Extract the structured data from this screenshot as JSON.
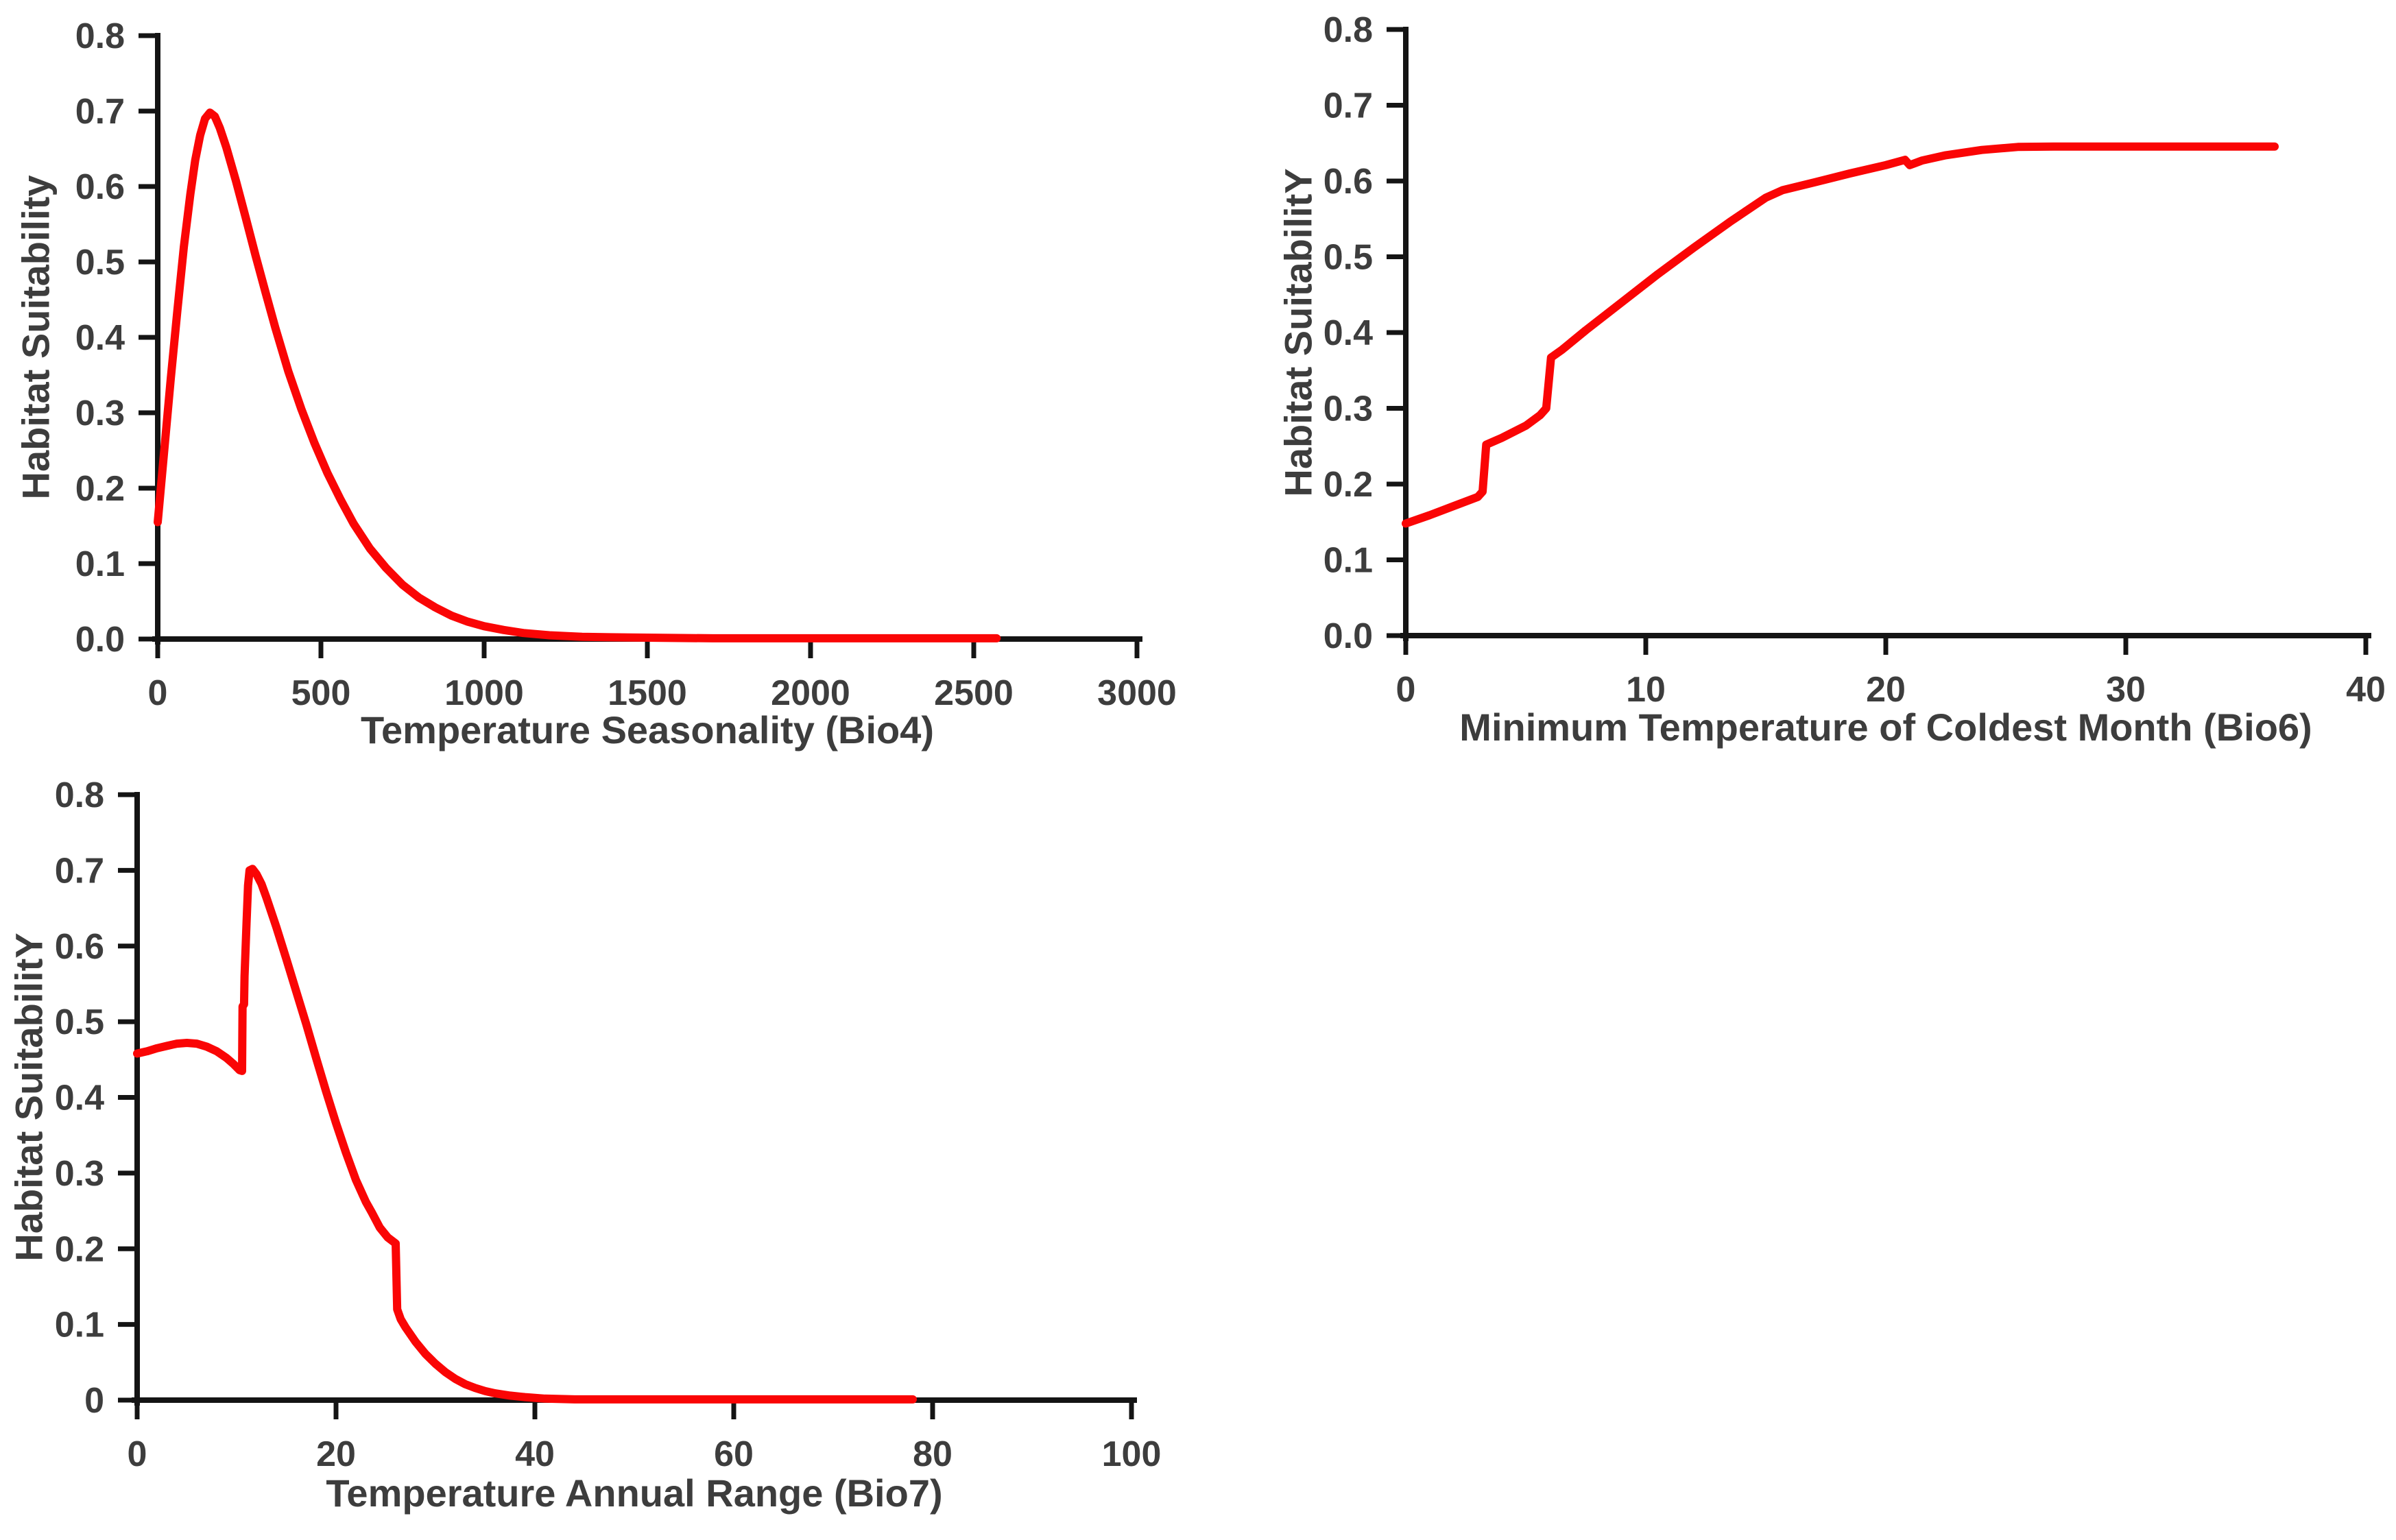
{
  "page": {
    "background": "#ffffff",
    "axis_color": "#141414",
    "tick_label_color": "#3d3d3d",
    "curve_color": "#fa0505"
  },
  "chart_data": [
    {
      "id": "bio4",
      "type": "line",
      "xlabel": "Temperature Seasonality (Bio4)",
      "ylabel": "Habitat Suitability",
      "xlim": [
        0,
        3000
      ],
      "ylim": [
        0,
        0.8
      ],
      "grid": false,
      "legend": false,
      "line_color": "#fa0505",
      "x_ticks": [
        {
          "v": 0,
          "label": "0"
        },
        {
          "v": 500,
          "label": "500"
        },
        {
          "v": 1000,
          "label": "1000"
        },
        {
          "v": 1500,
          "label": "1500"
        },
        {
          "v": 2000,
          "label": "2000"
        },
        {
          "v": 2500,
          "label": "2500"
        },
        {
          "v": 3000,
          "label": "3000"
        }
      ],
      "y_ticks": [
        {
          "v": 0.0,
          "label": "0.0"
        },
        {
          "v": 0.1,
          "label": "0.1"
        },
        {
          "v": 0.2,
          "label": "0.2"
        },
        {
          "v": 0.3,
          "label": "0.3"
        },
        {
          "v": 0.4,
          "label": "0.4"
        },
        {
          "v": 0.5,
          "label": "0.5"
        },
        {
          "v": 0.6,
          "label": "0.6"
        },
        {
          "v": 0.7,
          "label": "0.7"
        },
        {
          "v": 0.8,
          "label": "0.8"
        }
      ],
      "points": [
        [
          0,
          0.155
        ],
        [
          20,
          0.25
        ],
        [
          40,
          0.345
        ],
        [
          60,
          0.435
        ],
        [
          80,
          0.52
        ],
        [
          100,
          0.59
        ],
        [
          115,
          0.635
        ],
        [
          130,
          0.668
        ],
        [
          145,
          0.69
        ],
        [
          160,
          0.698
        ],
        [
          175,
          0.693
        ],
        [
          190,
          0.678
        ],
        [
          210,
          0.652
        ],
        [
          240,
          0.607
        ],
        [
          270,
          0.558
        ],
        [
          300,
          0.508
        ],
        [
          330,
          0.46
        ],
        [
          360,
          0.413
        ],
        [
          400,
          0.355
        ],
        [
          440,
          0.305
        ],
        [
          480,
          0.26
        ],
        [
          520,
          0.22
        ],
        [
          560,
          0.185
        ],
        [
          600,
          0.153
        ],
        [
          650,
          0.12
        ],
        [
          700,
          0.094
        ],
        [
          750,
          0.072
        ],
        [
          800,
          0.055
        ],
        [
          850,
          0.042
        ],
        [
          900,
          0.031
        ],
        [
          950,
          0.023
        ],
        [
          1000,
          0.017
        ],
        [
          1060,
          0.012
        ],
        [
          1120,
          0.008
        ],
        [
          1200,
          0.005
        ],
        [
          1300,
          0.003
        ],
        [
          1450,
          0.002
        ],
        [
          1700,
          0.001
        ],
        [
          2000,
          0.001
        ],
        [
          2300,
          0.001
        ],
        [
          2570,
          0.001
        ]
      ]
    },
    {
      "id": "bio6",
      "type": "line",
      "xlabel": "Minimum Temperature of Coldest Month (Bio6)",
      "ylabel": "Habitat SuitabilitY",
      "xlim": [
        0,
        40
      ],
      "ylim": [
        0,
        0.8
      ],
      "grid": false,
      "legend": false,
      "line_color": "#fa0505",
      "x_ticks": [
        {
          "v": 0,
          "label": "0"
        },
        {
          "v": 10,
          "label": "10"
        },
        {
          "v": 20,
          "label": "20"
        },
        {
          "v": 30,
          "label": "30"
        },
        {
          "v": 40,
          "label": "40"
        }
      ],
      "y_ticks": [
        {
          "v": 0.0,
          "label": "0.0"
        },
        {
          "v": 0.1,
          "label": "0.1"
        },
        {
          "v": 0.2,
          "label": "0.2"
        },
        {
          "v": 0.3,
          "label": "0.3"
        },
        {
          "v": 0.4,
          "label": "0.4"
        },
        {
          "v": 0.5,
          "label": "0.5"
        },
        {
          "v": 0.6,
          "label": "0.6"
        },
        {
          "v": 0.7,
          "label": "0.7"
        },
        {
          "v": 0.8,
          "label": "0.8"
        }
      ],
      "points": [
        [
          0,
          0.148
        ],
        [
          1,
          0.159
        ],
        [
          2,
          0.171
        ],
        [
          3,
          0.183
        ],
        [
          3.2,
          0.19
        ],
        [
          3.35,
          0.252
        ],
        [
          4,
          0.261
        ],
        [
          5,
          0.277
        ],
        [
          5.6,
          0.291
        ],
        [
          5.85,
          0.3
        ],
        [
          6.05,
          0.367
        ],
        [
          6.5,
          0.377
        ],
        [
          7.5,
          0.403
        ],
        [
          9,
          0.44
        ],
        [
          10.5,
          0.477
        ],
        [
          12,
          0.512
        ],
        [
          13.5,
          0.546
        ],
        [
          15,
          0.578
        ],
        [
          15.7,
          0.588
        ],
        [
          17,
          0.598
        ],
        [
          18.5,
          0.61
        ],
        [
          20,
          0.621
        ],
        [
          20.8,
          0.628
        ],
        [
          21,
          0.621
        ],
        [
          21.5,
          0.627
        ],
        [
          22.5,
          0.634
        ],
        [
          24,
          0.641
        ],
        [
          25.5,
          0.645
        ],
        [
          27,
          0.6455
        ],
        [
          29,
          0.6455
        ],
        [
          31,
          0.6455
        ],
        [
          33,
          0.6455
        ],
        [
          36.2,
          0.6455
        ]
      ]
    },
    {
      "id": "bio7",
      "type": "line",
      "xlabel": "Temperature Annual Range (Bio7)",
      "ylabel": "Habitat SuitabilitY",
      "xlim": [
        0,
        100
      ],
      "ylim": [
        0,
        0.8
      ],
      "grid": false,
      "legend": false,
      "line_color": "#fa0505",
      "x_ticks": [
        {
          "v": 0,
          "label": "0"
        },
        {
          "v": 20,
          "label": "20"
        },
        {
          "v": 40,
          "label": "40"
        },
        {
          "v": 60,
          "label": "60"
        },
        {
          "v": 80,
          "label": "80"
        },
        {
          "v": 100,
          "label": "100"
        }
      ],
      "y_ticks": [
        {
          "v": 0.0,
          "label": "0"
        },
        {
          "v": 0.1,
          "label": "0.1"
        },
        {
          "v": 0.2,
          "label": "0.2"
        },
        {
          "v": 0.3,
          "label": "0.3"
        },
        {
          "v": 0.4,
          "label": "0.4"
        },
        {
          "v": 0.5,
          "label": "0.5"
        },
        {
          "v": 0.6,
          "label": "0.6"
        },
        {
          "v": 0.7,
          "label": "0.7"
        },
        {
          "v": 0.8,
          "label": "0.8"
        }
      ],
      "points": [
        [
          0,
          0.458
        ],
        [
          1,
          0.461
        ],
        [
          2,
          0.465
        ],
        [
          3,
          0.468
        ],
        [
          4,
          0.471
        ],
        [
          5,
          0.472
        ],
        [
          6,
          0.471
        ],
        [
          7,
          0.467
        ],
        [
          8,
          0.461
        ],
        [
          9,
          0.452
        ],
        [
          9.7,
          0.444
        ],
        [
          10.3,
          0.436
        ],
        [
          10.55,
          0.435
        ],
        [
          10.6,
          0.52
        ],
        [
          10.75,
          0.523
        ],
        [
          10.8,
          0.56
        ],
        [
          11.0,
          0.63
        ],
        [
          11.15,
          0.68
        ],
        [
          11.3,
          0.7
        ],
        [
          11.6,
          0.702
        ],
        [
          12,
          0.695
        ],
        [
          12.5,
          0.682
        ],
        [
          13,
          0.664
        ],
        [
          14,
          0.625
        ],
        [
          15,
          0.583
        ],
        [
          16,
          0.54
        ],
        [
          17,
          0.497
        ],
        [
          18,
          0.452
        ],
        [
          19,
          0.408
        ],
        [
          20,
          0.366
        ],
        [
          21,
          0.327
        ],
        [
          22,
          0.291
        ],
        [
          23,
          0.262
        ],
        [
          23.6,
          0.248
        ],
        [
          24.4,
          0.228
        ],
        [
          25.2,
          0.215
        ],
        [
          25.8,
          0.209
        ],
        [
          26.0,
          0.207
        ],
        [
          26.15,
          0.12
        ],
        [
          26.5,
          0.107
        ],
        [
          27,
          0.096
        ],
        [
          28,
          0.077
        ],
        [
          29,
          0.061
        ],
        [
          30,
          0.048
        ],
        [
          31,
          0.037
        ],
        [
          32,
          0.028
        ],
        [
          33,
          0.021
        ],
        [
          34,
          0.016
        ],
        [
          35,
          0.012
        ],
        [
          36,
          0.009
        ],
        [
          37.5,
          0.006
        ],
        [
          39,
          0.004
        ],
        [
          41,
          0.002
        ],
        [
          44,
          0.001
        ],
        [
          50,
          0.001
        ],
        [
          60,
          0.001
        ],
        [
          70,
          0.001
        ],
        [
          78,
          0.001
        ]
      ]
    }
  ]
}
